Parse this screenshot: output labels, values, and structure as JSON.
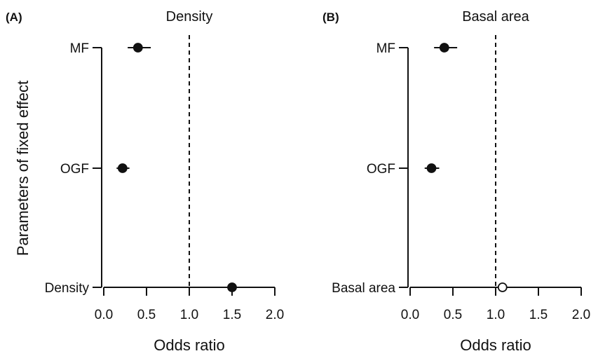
{
  "figure": {
    "ylabel": "Parameters of fixed effect"
  },
  "chart_data": [
    {
      "type": "forest",
      "panel_label": "(A)",
      "title": "Density",
      "xlabel": "Odds ratio",
      "xlim": [
        0,
        2
      ],
      "x_ticks": [
        "0.0",
        "0.5",
        "1.0",
        "1.5",
        "2.0"
      ],
      "reference_line": 1.0,
      "rows": [
        {
          "label": "MF",
          "estimate": 0.4,
          "ci_low": 0.28,
          "ci_high": 0.55,
          "filled": true
        },
        {
          "label": "OGF",
          "estimate": 0.22,
          "ci_low": 0.15,
          "ci_high": 0.3,
          "filled": true
        },
        {
          "label": "Density",
          "estimate": 1.5,
          "ci_low": 1.32,
          "ci_high": 1.7,
          "filled": true
        }
      ]
    },
    {
      "type": "forest",
      "panel_label": "(B)",
      "title": "Basal area",
      "xlabel": "Odds ratio",
      "xlim": [
        0,
        2
      ],
      "x_ticks": [
        "0.0",
        "0.5",
        "1.0",
        "1.5",
        "2.0"
      ],
      "reference_line": 1.0,
      "rows": [
        {
          "label": "MF",
          "estimate": 0.4,
          "ci_low": 0.28,
          "ci_high": 0.55,
          "filled": true
        },
        {
          "label": "OGF",
          "estimate": 0.25,
          "ci_low": 0.17,
          "ci_high": 0.34,
          "filled": true
        },
        {
          "label": "Basal area",
          "estimate": 1.08,
          "ci_low": 0.97,
          "ci_high": 1.22,
          "filled": false
        }
      ]
    }
  ]
}
